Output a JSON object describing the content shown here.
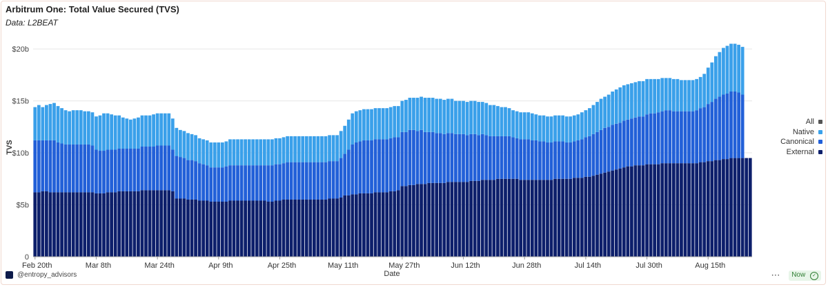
{
  "header": {
    "title": "Arbitrum One: Total Value Secured (TVS)",
    "subtitle": "Data: L2BEAT"
  },
  "legend": {
    "items": [
      {
        "label": "All",
        "color": "#555555"
      },
      {
        "label": "Native",
        "color": "#3aa0ea"
      },
      {
        "label": "Canonical",
        "color": "#2260d8"
      },
      {
        "label": "External",
        "color": "#0d1f6b"
      }
    ]
  },
  "footer": {
    "handle": "@entropy_advisors",
    "more": "···",
    "status": "Now",
    "status_icon": "check-circle-icon"
  },
  "chart_data": {
    "type": "bar",
    "stacked": true,
    "xlabel": "Date",
    "ylabel": "TVS",
    "ylim": [
      0,
      21
    ],
    "y_ticks": [
      0,
      5,
      10,
      15,
      20
    ],
    "y_tick_labels": [
      "0",
      "$5b",
      "$10b",
      "$15b",
      "$20b"
    ],
    "x_tick_labels": [
      "Feb 20th",
      "Mar 8th",
      "Mar 24th",
      "Apr 9th",
      "Apr 25th",
      "May 11th",
      "May 27th",
      "Jun 12th",
      "Jun 28th",
      "Jul 14th",
      "Jul 30th",
      "Aug 15th"
    ],
    "x_tick_index": [
      0,
      16,
      32,
      48,
      64,
      80,
      96,
      112,
      128,
      144,
      160,
      176
    ],
    "grid": true,
    "legend_position": "right",
    "colors": {
      "External": "#0d1f6b",
      "Canonical": "#2260d8",
      "Native": "#3aa0ea"
    },
    "series": [
      {
        "name": "External",
        "values": [
          6.2,
          6.2,
          6.3,
          6.3,
          6.2,
          6.2,
          6.2,
          6.2,
          6.2,
          6.2,
          6.2,
          6.2,
          6.2,
          6.2,
          6.2,
          6.2,
          6.1,
          6.1,
          6.1,
          6.2,
          6.2,
          6.2,
          6.3,
          6.3,
          6.3,
          6.3,
          6.3,
          6.3,
          6.4,
          6.4,
          6.4,
          6.4,
          6.4,
          6.4,
          6.4,
          6.4,
          6.3,
          5.6,
          5.6,
          5.6,
          5.5,
          5.5,
          5.5,
          5.4,
          5.4,
          5.4,
          5.3,
          5.3,
          5.3,
          5.3,
          5.3,
          5.4,
          5.4,
          5.4,
          5.4,
          5.4,
          5.4,
          5.4,
          5.4,
          5.4,
          5.4,
          5.3,
          5.3,
          5.4,
          5.4,
          5.5,
          5.5,
          5.5,
          5.5,
          5.5,
          5.5,
          5.5,
          5.5,
          5.5,
          5.5,
          5.5,
          5.5,
          5.6,
          5.6,
          5.6,
          5.7,
          5.9,
          5.9,
          6.0,
          6.0,
          6.1,
          6.1,
          6.1,
          6.1,
          6.2,
          6.2,
          6.2,
          6.2,
          6.3,
          6.3,
          6.4,
          6.8,
          6.8,
          6.9,
          6.9,
          7.0,
          7.0,
          7.0,
          7.1,
          7.1,
          7.1,
          7.1,
          7.1,
          7.2,
          7.2,
          7.2,
          7.2,
          7.2,
          7.2,
          7.3,
          7.3,
          7.3,
          7.4,
          7.4,
          7.4,
          7.4,
          7.5,
          7.5,
          7.5,
          7.5,
          7.5,
          7.5,
          7.4,
          7.4,
          7.4,
          7.4,
          7.4,
          7.4,
          7.4,
          7.4,
          7.4,
          7.5,
          7.5,
          7.5,
          7.5,
          7.5,
          7.6,
          7.6,
          7.6,
          7.7,
          7.7,
          7.8,
          7.9,
          8.0,
          8.1,
          8.2,
          8.3,
          8.4,
          8.5,
          8.6,
          8.7,
          8.7,
          8.8,
          8.8,
          8.8,
          8.9,
          8.9,
          8.9,
          8.9,
          9.0,
          9.0,
          9.0,
          9.0,
          9.0,
          9.0,
          9.0,
          9.0,
          9.0,
          9.0,
          9.1,
          9.1,
          9.2,
          9.2,
          9.3,
          9.3,
          9.4,
          9.4,
          9.5,
          9.5,
          9.5,
          9.5,
          9.5,
          9.5
        ]
      },
      {
        "name": "Canonical",
        "values": [
          5.0,
          5.0,
          4.9,
          4.9,
          5.0,
          5.0,
          4.8,
          4.7,
          4.6,
          4.6,
          4.6,
          4.6,
          4.6,
          4.6,
          4.6,
          4.5,
          4.2,
          4.1,
          4.1,
          4.1,
          4.1,
          4.1,
          4.1,
          4.1,
          4.1,
          4.1,
          4.1,
          4.1,
          4.2,
          4.2,
          4.2,
          4.2,
          4.3,
          4.3,
          4.3,
          4.3,
          4.0,
          4.1,
          4.0,
          3.9,
          3.8,
          3.8,
          3.7,
          3.6,
          3.5,
          3.4,
          3.3,
          3.3,
          3.3,
          3.3,
          3.4,
          3.4,
          3.4,
          3.4,
          3.4,
          3.4,
          3.4,
          3.4,
          3.4,
          3.4,
          3.4,
          3.5,
          3.5,
          3.5,
          3.5,
          3.5,
          3.6,
          3.6,
          3.6,
          3.6,
          3.6,
          3.6,
          3.6,
          3.6,
          3.6,
          3.6,
          3.6,
          3.6,
          3.6,
          3.6,
          3.8,
          4.0,
          4.4,
          4.8,
          5.0,
          5.0,
          5.1,
          5.1,
          5.1,
          5.1,
          5.1,
          5.1,
          5.1,
          5.1,
          5.2,
          5.1,
          5.2,
          5.2,
          5.3,
          5.3,
          5.1,
          5.2,
          5.0,
          4.9,
          4.9,
          4.8,
          4.8,
          4.7,
          4.7,
          4.7,
          4.6,
          4.6,
          4.6,
          4.5,
          4.5,
          4.5,
          4.4,
          4.4,
          4.3,
          4.2,
          4.2,
          4.1,
          4.1,
          4.1,
          4.1,
          4.0,
          3.9,
          3.9,
          3.9,
          3.9,
          3.8,
          3.8,
          3.7,
          3.7,
          3.6,
          3.6,
          3.6,
          3.6,
          3.6,
          3.5,
          3.5,
          3.5,
          3.6,
          3.7,
          3.8,
          3.9,
          4.0,
          4.1,
          4.2,
          4.3,
          4.3,
          4.4,
          4.4,
          4.4,
          4.5,
          4.5,
          4.6,
          4.6,
          4.7,
          4.7,
          4.8,
          4.9,
          4.9,
          5.0,
          5.0,
          5.1,
          5.1,
          5.0,
          5.0,
          5.0,
          5.0,
          5.0,
          5.0,
          5.1,
          5.2,
          5.3,
          5.5,
          5.7,
          5.9,
          6.1,
          6.2,
          6.3,
          6.4,
          6.4,
          6.3,
          6.1
        ]
      },
      {
        "name": "Native",
        "values": [
          3.2,
          3.4,
          3.2,
          3.4,
          3.5,
          3.6,
          3.5,
          3.4,
          3.3,
          3.2,
          3.3,
          3.3,
          3.3,
          3.2,
          3.2,
          3.2,
          3.2,
          3.4,
          3.6,
          3.5,
          3.4,
          3.3,
          3.2,
          3.0,
          2.9,
          2.8,
          2.9,
          3.0,
          3.0,
          3.0,
          3.0,
          3.1,
          3.1,
          3.1,
          3.1,
          3.1,
          3.0,
          2.7,
          2.6,
          2.6,
          2.6,
          2.5,
          2.5,
          2.4,
          2.4,
          2.4,
          2.4,
          2.4,
          2.4,
          2.4,
          2.4,
          2.5,
          2.5,
          2.5,
          2.5,
          2.5,
          2.5,
          2.5,
          2.5,
          2.5,
          2.5,
          2.5,
          2.5,
          2.5,
          2.5,
          2.5,
          2.5,
          2.5,
          2.5,
          2.5,
          2.5,
          2.5,
          2.5,
          2.5,
          2.5,
          2.5,
          2.5,
          2.5,
          2.5,
          2.5,
          2.6,
          2.7,
          2.9,
          3.0,
          3.0,
          3.0,
          3.0,
          3.0,
          3.0,
          3.0,
          3.0,
          3.0,
          3.0,
          3.0,
          3.0,
          3.0,
          3.0,
          3.1,
          3.1,
          3.1,
          3.2,
          3.2,
          3.3,
          3.3,
          3.3,
          3.3,
          3.3,
          3.3,
          3.3,
          3.3,
          3.2,
          3.2,
          3.2,
          3.2,
          3.2,
          3.2,
          3.2,
          3.1,
          3.1,
          3.0,
          3.0,
          2.9,
          2.8,
          2.8,
          2.7,
          2.6,
          2.6,
          2.6,
          2.6,
          2.6,
          2.6,
          2.5,
          2.5,
          2.5,
          2.5,
          2.5,
          2.5,
          2.5,
          2.5,
          2.5,
          2.5,
          2.5,
          2.5,
          2.6,
          2.6,
          2.7,
          2.8,
          2.9,
          3.0,
          3.0,
          3.1,
          3.2,
          3.3,
          3.4,
          3.4,
          3.4,
          3.4,
          3.4,
          3.4,
          3.4,
          3.4,
          3.3,
          3.3,
          3.2,
          3.2,
          3.1,
          3.1,
          3.1,
          3.1,
          3.0,
          3.0,
          3.0,
          3.0,
          3.0,
          3.0,
          3.2,
          3.5,
          3.8,
          4.1,
          4.3,
          4.5,
          4.6,
          4.6,
          4.6,
          4.6,
          4.6
        ]
      }
    ]
  }
}
